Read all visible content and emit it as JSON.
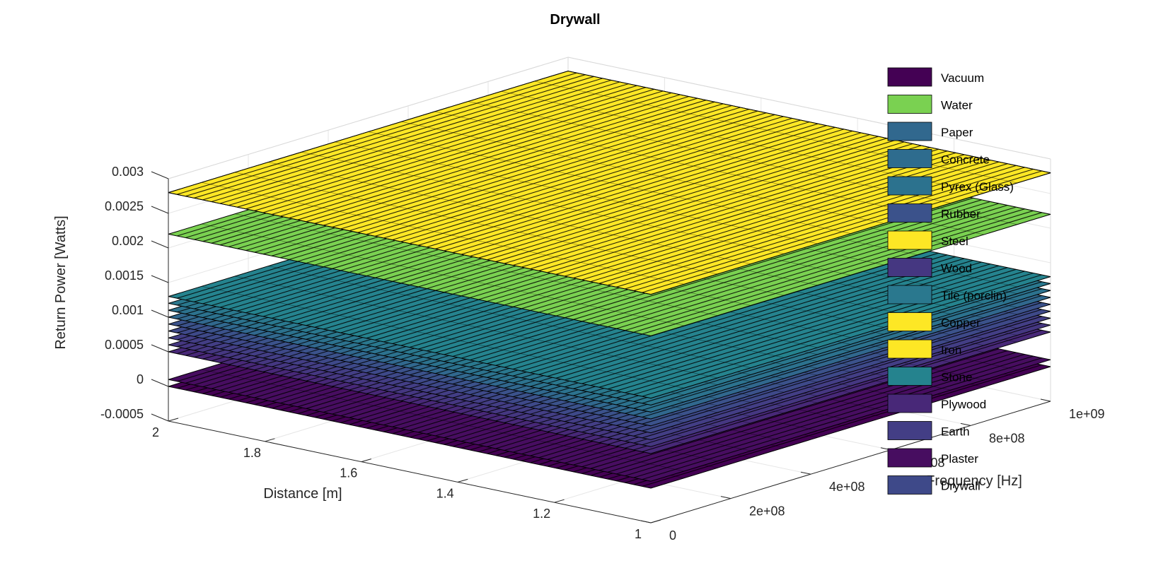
{
  "chart_data": {
    "type": "surface-3d",
    "title": "Drywall",
    "xlabel": "Frequency [Hz]",
    "ylabel": "Distance [m]",
    "zlabel": "Return Power [Watts]",
    "x_ticks": [
      "0",
      "2e+08",
      "4e+08",
      "6e+08",
      "8e+08",
      "1e+09"
    ],
    "x_tick_values": [
      0,
      200000000,
      400000000,
      600000000,
      800000000,
      1000000000
    ],
    "y_ticks": [
      "1",
      "1.2",
      "1.4",
      "1.6",
      "1.8",
      "2"
    ],
    "y_tick_values": [
      1,
      1.2,
      1.4,
      1.6,
      1.8,
      2
    ],
    "z_ticks": [
      "-0.0005",
      "0",
      "0.0005",
      "0.001",
      "0.0015",
      "0.002",
      "0.0025",
      "0.003"
    ],
    "z_tick_values": [
      -0.0005,
      0,
      0.0005,
      0.001,
      0.0015,
      0.002,
      0.0025,
      0.003
    ],
    "xlim": [
      0,
      1000000000
    ],
    "ylim": [
      1,
      2
    ],
    "zlim": [
      -0.0005,
      0.003
    ],
    "grid": true,
    "legend_position": "top-right",
    "series": [
      {
        "name": "Vacuum",
        "level": 0.0,
        "color": "#440154"
      },
      {
        "name": "Water",
        "level": 0.0022,
        "color": "#7ad151"
      },
      {
        "name": "Paper",
        "level": 0.001,
        "color": "#31688e"
      },
      {
        "name": "Concrete",
        "level": 0.0011,
        "color": "#2e6c8e"
      },
      {
        "name": "Pyrex (Glass)",
        "level": 0.0011,
        "color": "#2c728e"
      },
      {
        "name": "Rubber",
        "level": 0.0009,
        "color": "#3b528b"
      },
      {
        "name": "Steel",
        "level": 0.0028,
        "color": "#fde725"
      },
      {
        "name": "Wood",
        "level": 0.0006,
        "color": "#453781"
      },
      {
        "name": "Tile (porclin)",
        "level": 0.0012,
        "color": "#2a788e"
      },
      {
        "name": "Copper",
        "level": 0.0028,
        "color": "#fde725"
      },
      {
        "name": "Iron",
        "level": 0.0028,
        "color": "#fde725"
      },
      {
        "name": "Stone",
        "level": 0.0013,
        "color": "#25838e"
      },
      {
        "name": "Plywood",
        "level": 0.0005,
        "color": "#482878"
      },
      {
        "name": "Earth",
        "level": 0.0007,
        "color": "#433e85"
      },
      {
        "name": "Plaster",
        "level": 0.0001,
        "color": "#470d60"
      },
      {
        "name": "Drywall",
        "level": 0.0008,
        "color": "#3e4989"
      }
    ]
  }
}
